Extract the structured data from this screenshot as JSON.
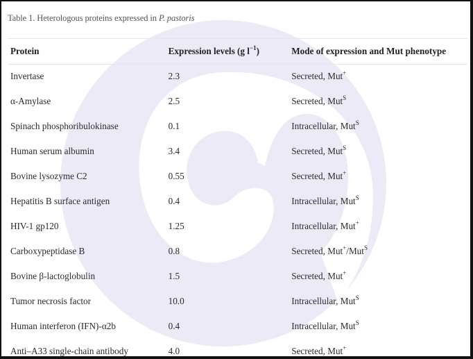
{
  "caption": {
    "prefix": "Table 1. Heterologous proteins expressed in ",
    "organism": "P. pastoris"
  },
  "table": {
    "headers": {
      "protein": "Protein",
      "expression_base": "Expression levels (g l",
      "expression_sup": "−1",
      "expression_end": ")",
      "mode": "Mode of expression and Mut phenotype"
    },
    "rows": [
      {
        "protein": "Invertase",
        "level": "2.3",
        "mode": "Secreted, Mut",
        "sup": "+",
        "extra": "",
        "extra_sup": ""
      },
      {
        "protein": "α-Amylase",
        "level": "2.5",
        "mode": "Secreted, Mut",
        "sup": "S",
        "extra": "",
        "extra_sup": ""
      },
      {
        "protein": "Spinach phosphoribulokinase",
        "level": "0.1",
        "mode": "Intracellular, Mut",
        "sup": "S",
        "extra": "",
        "extra_sup": ""
      },
      {
        "protein": "Human serum albumin",
        "level": "3.4",
        "mode": "Secreted, Mut",
        "sup": "S",
        "extra": "",
        "extra_sup": ""
      },
      {
        "protein": "Bovine lysozyme C2",
        "level": "0.55",
        "mode": "Secreted, Mut",
        "sup": "+",
        "extra": "",
        "extra_sup": ""
      },
      {
        "protein": "Hepatitis B surface antigen",
        "level": "0.4",
        "mode": "Intracellular, Mut",
        "sup": "S",
        "extra": "",
        "extra_sup": ""
      },
      {
        "protein": "HIV-1 gp120",
        "level": "1.25",
        "mode": "Intracellular, Mut",
        "sup": "+",
        "extra": "",
        "extra_sup": ""
      },
      {
        "protein": "Carboxypeptidase B",
        "level": "0.8",
        "mode": "Secreted, Mut",
        "sup": "+",
        "extra": "/Mut",
        "extra_sup": "S"
      },
      {
        "protein": "Bovine β-lactoglobulin",
        "level": "1.5",
        "mode": "Secreted, Mut",
        "sup": "+",
        "extra": "",
        "extra_sup": ""
      },
      {
        "protein": "Tumor necrosis factor",
        "level": "10.0",
        "mode": "Intracellular, Mut",
        "sup": "S",
        "extra": "",
        "extra_sup": ""
      },
      {
        "protein": "Human interferon (IFN)-α2b",
        "level": "0.4",
        "mode": "Intracellular, Mut",
        "sup": "S",
        "extra": "",
        "extra_sup": ""
      },
      {
        "protein": "Anti–A33 single-chain antibody",
        "level": "4.0",
        "mode": "Secreted, Mut",
        "sup": "+",
        "extra": "",
        "extra_sup": ""
      }
    ]
  },
  "colors": {
    "watermark": "#eceaf7",
    "caption": "#555555",
    "rule": "#e6e6ea",
    "border": "#111111"
  }
}
